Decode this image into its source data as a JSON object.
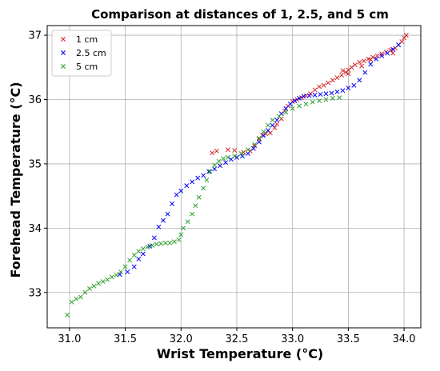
{
  "chart_data": {
    "type": "scatter",
    "title": "Comparison at distances of 1, 2.5, and 5 cm",
    "xlabel": "Wrist Temperature (°C)",
    "ylabel": "Forehead Temperature (°C)",
    "xlim": [
      30.8,
      34.15
    ],
    "ylim": [
      32.45,
      37.15
    ],
    "xticks": [
      "31.0",
      "31.5",
      "32.0",
      "32.5",
      "33.0",
      "33.5",
      "34.0"
    ],
    "yticks": [
      "33",
      "34",
      "35",
      "36",
      "37"
    ],
    "grid": true,
    "legend_position": "top-left",
    "marker": "x",
    "series": [
      {
        "name": "1 cm",
        "color": "#d62728",
        "points": [
          [
            32.28,
            35.17
          ],
          [
            32.32,
            35.2
          ],
          [
            32.42,
            35.22
          ],
          [
            32.48,
            35.21
          ],
          [
            32.56,
            35.18
          ],
          [
            32.62,
            35.2
          ],
          [
            32.66,
            35.28
          ],
          [
            32.7,
            35.38
          ],
          [
            32.73,
            35.45
          ],
          [
            32.76,
            35.47
          ],
          [
            32.8,
            35.48
          ],
          [
            32.84,
            35.56
          ],
          [
            32.86,
            35.62
          ],
          [
            32.9,
            35.7
          ],
          [
            32.93,
            35.82
          ],
          [
            32.96,
            35.9
          ],
          [
            33.0,
            35.97
          ],
          [
            33.04,
            36.0
          ],
          [
            33.08,
            36.03
          ],
          [
            33.12,
            36.06
          ],
          [
            33.16,
            36.09
          ],
          [
            33.2,
            36.15
          ],
          [
            33.24,
            36.2
          ],
          [
            33.28,
            36.22
          ],
          [
            33.32,
            36.26
          ],
          [
            33.36,
            36.3
          ],
          [
            33.4,
            36.34
          ],
          [
            33.44,
            36.38
          ],
          [
            33.48,
            36.42
          ],
          [
            33.5,
            36.46
          ],
          [
            33.53,
            36.5
          ],
          [
            33.56,
            36.54
          ],
          [
            33.6,
            36.58
          ],
          [
            33.64,
            36.6
          ],
          [
            33.68,
            36.63
          ],
          [
            33.72,
            36.66
          ],
          [
            33.76,
            36.68
          ],
          [
            33.8,
            36.71
          ],
          [
            33.84,
            36.74
          ],
          [
            33.88,
            36.77
          ],
          [
            33.92,
            36.8
          ],
          [
            33.95,
            36.85
          ],
          [
            33.98,
            36.9
          ],
          [
            34.0,
            36.96
          ],
          [
            34.02,
            37.0
          ],
          [
            33.5,
            36.4
          ],
          [
            33.45,
            36.45
          ],
          [
            33.62,
            36.52
          ],
          [
            33.9,
            36.72
          ],
          [
            33.7,
            36.62
          ]
        ]
      },
      {
        "name": "2.5 cm",
        "color": "#0000ff",
        "points": [
          [
            31.45,
            33.28
          ],
          [
            31.52,
            33.32
          ],
          [
            31.58,
            33.4
          ],
          [
            31.62,
            33.52
          ],
          [
            31.66,
            33.6
          ],
          [
            31.72,
            33.72
          ],
          [
            31.76,
            33.85
          ],
          [
            31.8,
            34.02
          ],
          [
            31.84,
            34.12
          ],
          [
            31.88,
            34.22
          ],
          [
            31.92,
            34.38
          ],
          [
            31.96,
            34.52
          ],
          [
            32.0,
            34.58
          ],
          [
            32.05,
            34.66
          ],
          [
            32.1,
            34.72
          ],
          [
            32.15,
            34.78
          ],
          [
            32.2,
            34.82
          ],
          [
            32.25,
            34.88
          ],
          [
            32.3,
            34.92
          ],
          [
            32.35,
            34.97
          ],
          [
            32.4,
            35.02
          ],
          [
            32.45,
            35.07
          ],
          [
            32.5,
            35.1
          ],
          [
            32.55,
            35.12
          ],
          [
            32.6,
            35.16
          ],
          [
            32.65,
            35.24
          ],
          [
            32.7,
            35.34
          ],
          [
            32.74,
            35.44
          ],
          [
            32.78,
            35.52
          ],
          [
            32.82,
            35.6
          ],
          [
            32.86,
            35.68
          ],
          [
            32.9,
            35.78
          ],
          [
            32.94,
            35.86
          ],
          [
            32.98,
            35.93
          ],
          [
            33.02,
            35.98
          ],
          [
            33.06,
            36.02
          ],
          [
            33.1,
            36.05
          ],
          [
            33.15,
            36.06
          ],
          [
            33.2,
            36.07
          ],
          [
            33.25,
            36.08
          ],
          [
            33.3,
            36.09
          ],
          [
            33.35,
            36.1
          ],
          [
            33.4,
            36.12
          ],
          [
            33.45,
            36.14
          ],
          [
            33.5,
            36.18
          ],
          [
            33.55,
            36.22
          ],
          [
            33.6,
            36.3
          ],
          [
            33.65,
            36.42
          ],
          [
            33.7,
            36.55
          ],
          [
            33.75,
            36.63
          ],
          [
            33.8,
            36.68
          ],
          [
            33.85,
            36.72
          ],
          [
            33.9,
            36.78
          ],
          [
            33.95,
            36.85
          ]
        ]
      },
      {
        "name": "5 cm",
        "color": "#2ca02c",
        "points": [
          [
            30.98,
            32.65
          ],
          [
            31.02,
            32.85
          ],
          [
            31.06,
            32.9
          ],
          [
            31.1,
            32.93
          ],
          [
            31.14,
            33.0
          ],
          [
            31.18,
            33.06
          ],
          [
            31.22,
            33.1
          ],
          [
            31.26,
            33.14
          ],
          [
            31.3,
            33.17
          ],
          [
            31.34,
            33.2
          ],
          [
            31.38,
            33.24
          ],
          [
            31.42,
            33.27
          ],
          [
            31.46,
            33.32
          ],
          [
            31.5,
            33.4
          ],
          [
            31.54,
            33.5
          ],
          [
            31.58,
            33.58
          ],
          [
            31.62,
            33.64
          ],
          [
            31.66,
            33.68
          ],
          [
            31.7,
            33.71
          ],
          [
            31.74,
            33.73
          ],
          [
            31.78,
            33.75
          ],
          [
            31.82,
            33.76
          ],
          [
            31.86,
            33.77
          ],
          [
            31.9,
            33.77
          ],
          [
            31.94,
            33.79
          ],
          [
            31.98,
            33.82
          ],
          [
            32.0,
            33.9
          ],
          [
            32.02,
            34.0
          ],
          [
            32.06,
            34.1
          ],
          [
            32.1,
            34.22
          ],
          [
            32.13,
            34.35
          ],
          [
            32.16,
            34.48
          ],
          [
            32.2,
            34.62
          ],
          [
            32.23,
            34.75
          ],
          [
            32.26,
            34.88
          ],
          [
            32.3,
            34.98
          ],
          [
            32.34,
            35.04
          ],
          [
            32.38,
            35.08
          ],
          [
            32.42,
            35.1
          ],
          [
            32.48,
            35.12
          ],
          [
            32.54,
            35.16
          ],
          [
            32.6,
            35.22
          ],
          [
            32.66,
            35.3
          ],
          [
            32.7,
            35.4
          ],
          [
            32.74,
            35.5
          ],
          [
            32.78,
            35.6
          ],
          [
            32.82,
            35.68
          ],
          [
            32.88,
            35.74
          ],
          [
            32.94,
            35.8
          ],
          [
            33.0,
            35.86
          ],
          [
            33.06,
            35.9
          ],
          [
            33.12,
            35.93
          ],
          [
            33.18,
            35.96
          ],
          [
            33.24,
            35.98
          ],
          [
            33.3,
            36.0
          ],
          [
            33.36,
            36.02
          ],
          [
            33.42,
            36.03
          ]
        ]
      }
    ]
  }
}
